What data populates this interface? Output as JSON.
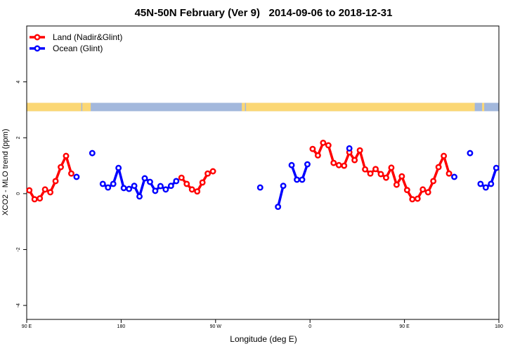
{
  "chart_data": {
    "type": "line",
    "title": "45N-50N February (Ver 9)   2014-09-06 to 2018-12-31",
    "xlabel": "Longitude (deg E)",
    "ylabel": "XCO2 - MLO trend (ppm)",
    "xlim": [
      0,
      450
    ],
    "ylim": [
      -4.5,
      6.0
    ],
    "x_ticks": [
      {
        "value": 0,
        "label": "90 E"
      },
      {
        "value": 90,
        "label": "180"
      },
      {
        "value": 180,
        "label": "90 W"
      },
      {
        "value": 270,
        "label": "0"
      },
      {
        "value": 360,
        "label": "90 E"
      },
      {
        "value": 450,
        "label": "180"
      }
    ],
    "y_ticks": [
      -4,
      -2,
      0,
      2,
      4
    ],
    "legend": {
      "position": "top-left"
    },
    "land_strip": {
      "y_range": [
        2.95,
        3.25
      ],
      "land_color": "#fbd775",
      "ocean_color": "#a3b8dc",
      "land_segments": [
        [
          0,
          52
        ],
        [
          53,
          61
        ],
        [
          205,
          208
        ],
        [
          209,
          427
        ],
        [
          434,
          436
        ]
      ]
    },
    "series": [
      {
        "name": "Land (Nadir&Glint)",
        "color": "#ff0000",
        "segments": [
          [
            [
              2.5,
              0.12
            ],
            [
              7.5,
              -0.2
            ],
            [
              12.5,
              -0.17
            ],
            [
              17.5,
              0.15
            ],
            [
              22.5,
              0.05
            ],
            [
              27.5,
              0.45
            ],
            [
              32.5,
              0.95
            ],
            [
              37.5,
              1.35
            ],
            [
              42.5,
              0.72
            ]
          ],
          [
            [
              147.5,
              0.57
            ],
            [
              152.5,
              0.35
            ],
            [
              157.5,
              0.15
            ],
            [
              162.5,
              0.08
            ],
            [
              167.5,
              0.4
            ],
            [
              172.5,
              0.72
            ],
            [
              177.5,
              0.8
            ]
          ],
          [
            [
              272.5,
              1.6
            ],
            [
              277.5,
              1.37
            ],
            [
              282.5,
              1.82
            ],
            [
              287.5,
              1.73
            ],
            [
              292.5,
              1.1
            ],
            [
              297.5,
              1.02
            ],
            [
              302.5,
              1.0
            ],
            [
              307.5,
              1.48
            ],
            [
              312.5,
              1.2
            ],
            [
              317.5,
              1.55
            ],
            [
              322.5,
              0.87
            ],
            [
              327.5,
              0.72
            ],
            [
              332.5,
              0.88
            ],
            [
              337.5,
              0.7
            ],
            [
              342.5,
              0.57
            ],
            [
              347.5,
              0.93
            ],
            [
              352.5,
              0.32
            ],
            [
              357.5,
              0.62
            ],
            [
              362.5,
              0.13
            ],
            [
              367.5,
              -0.2
            ],
            [
              372.5,
              -0.18
            ],
            [
              377.5,
              0.15
            ],
            [
              382.5,
              0.05
            ],
            [
              387.5,
              0.45
            ],
            [
              392.5,
              0.95
            ],
            [
              397.5,
              1.35
            ],
            [
              402.5,
              0.72
            ]
          ]
        ]
      },
      {
        "name": "Ocean (Glint)",
        "color": "#0000ff",
        "segments": [
          [
            [
              47.5,
              0.6
            ]
          ],
          [
            [
              62.5,
              1.45
            ]
          ],
          [
            [
              72.5,
              0.35
            ],
            [
              77.5,
              0.22
            ],
            [
              82.5,
              0.35
            ],
            [
              87.5,
              0.92
            ],
            [
              92.5,
              0.2
            ],
            [
              97.5,
              0.17
            ],
            [
              102.5,
              0.28
            ],
            [
              107.5,
              -0.1
            ],
            [
              112.5,
              0.55
            ],
            [
              117.5,
              0.42
            ],
            [
              122.5,
              0.1
            ],
            [
              127.5,
              0.27
            ],
            [
              132.5,
              0.15
            ],
            [
              137.5,
              0.28
            ],
            [
              142.5,
              0.45
            ]
          ],
          [
            [
              222.5,
              0.22
            ]
          ],
          [
            [
              239.5,
              -0.47
            ],
            [
              244.5,
              0.28
            ]
          ],
          [
            [
              252.5,
              1.02
            ],
            [
              257.5,
              0.5
            ],
            [
              262.5,
              0.5
            ],
            [
              267.5,
              1.05
            ]
          ],
          [
            [
              307.5,
              1.62
            ]
          ],
          [
            [
              407.5,
              0.6
            ]
          ],
          [
            [
              422.5,
              1.45
            ]
          ],
          [
            [
              432.5,
              0.35
            ],
            [
              437.5,
              0.22
            ],
            [
              442.5,
              0.35
            ],
            [
              447.5,
              0.92
            ]
          ]
        ]
      }
    ]
  }
}
